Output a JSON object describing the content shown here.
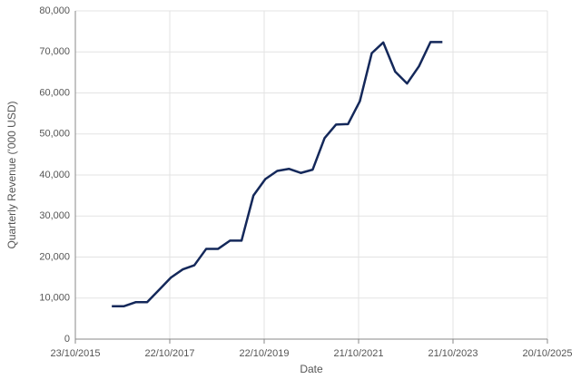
{
  "chart_data": {
    "type": "line",
    "x_label": "Date",
    "y_label": "Quarterly Revenue ('000 USD)",
    "x": [
      "2016-07-31",
      "2016-10-31",
      "2017-01-31",
      "2017-04-30",
      "2017-07-31",
      "2017-10-31",
      "2018-01-31",
      "2018-04-30",
      "2018-07-31",
      "2018-10-31",
      "2019-01-31",
      "2019-04-30",
      "2019-07-31",
      "2019-10-31",
      "2020-01-31",
      "2020-04-30",
      "2020-07-31",
      "2020-10-31",
      "2021-01-31",
      "2021-04-30",
      "2021-07-31",
      "2021-10-31",
      "2022-01-31",
      "2022-04-30",
      "2022-07-31",
      "2022-10-31",
      "2023-01-31",
      "2023-04-30",
      "2023-07-31"
    ],
    "series": [
      {
        "color": "#14285a",
        "values": [
          8000,
          8000,
          9000,
          9000,
          12000,
          15000,
          17000,
          18000,
          22000,
          22000,
          24000,
          24000,
          35000,
          39000,
          41000,
          41500,
          40500,
          41300,
          49000,
          52300,
          52400,
          58000,
          69700,
          72300,
          65200,
          62300,
          66500,
          72400,
          72400
        ]
      }
    ],
    "xlim": [
      "2015-10-23",
      "2025-10-20"
    ],
    "xticks": [
      {
        "value": "2015-10-23",
        "label": "23/10/2015"
      },
      {
        "value": "2017-10-22",
        "label": "22/10/2017"
      },
      {
        "value": "2019-10-22",
        "label": "22/10/2019"
      },
      {
        "value": "2021-10-21",
        "label": "21/10/2021"
      },
      {
        "value": "2023-10-21",
        "label": "21/10/2023"
      },
      {
        "value": "2025-10-20",
        "label": "20/10/2025"
      }
    ],
    "ylim": [
      0,
      80000
    ],
    "yticks": [
      0,
      {
        "value": 10000,
        "label": "10,000"
      },
      {
        "value": 20000,
        "label": "20,000"
      },
      {
        "value": 30000,
        "label": "30,000"
      },
      {
        "value": 40000,
        "label": "40,000"
      },
      {
        "value": 50000,
        "label": "50,000"
      },
      {
        "value": 60000,
        "label": "60,000"
      },
      {
        "value": 70000,
        "label": "70,000"
      },
      {
        "value": 80000,
        "label": "80,000"
      }
    ],
    "grid": true
  }
}
